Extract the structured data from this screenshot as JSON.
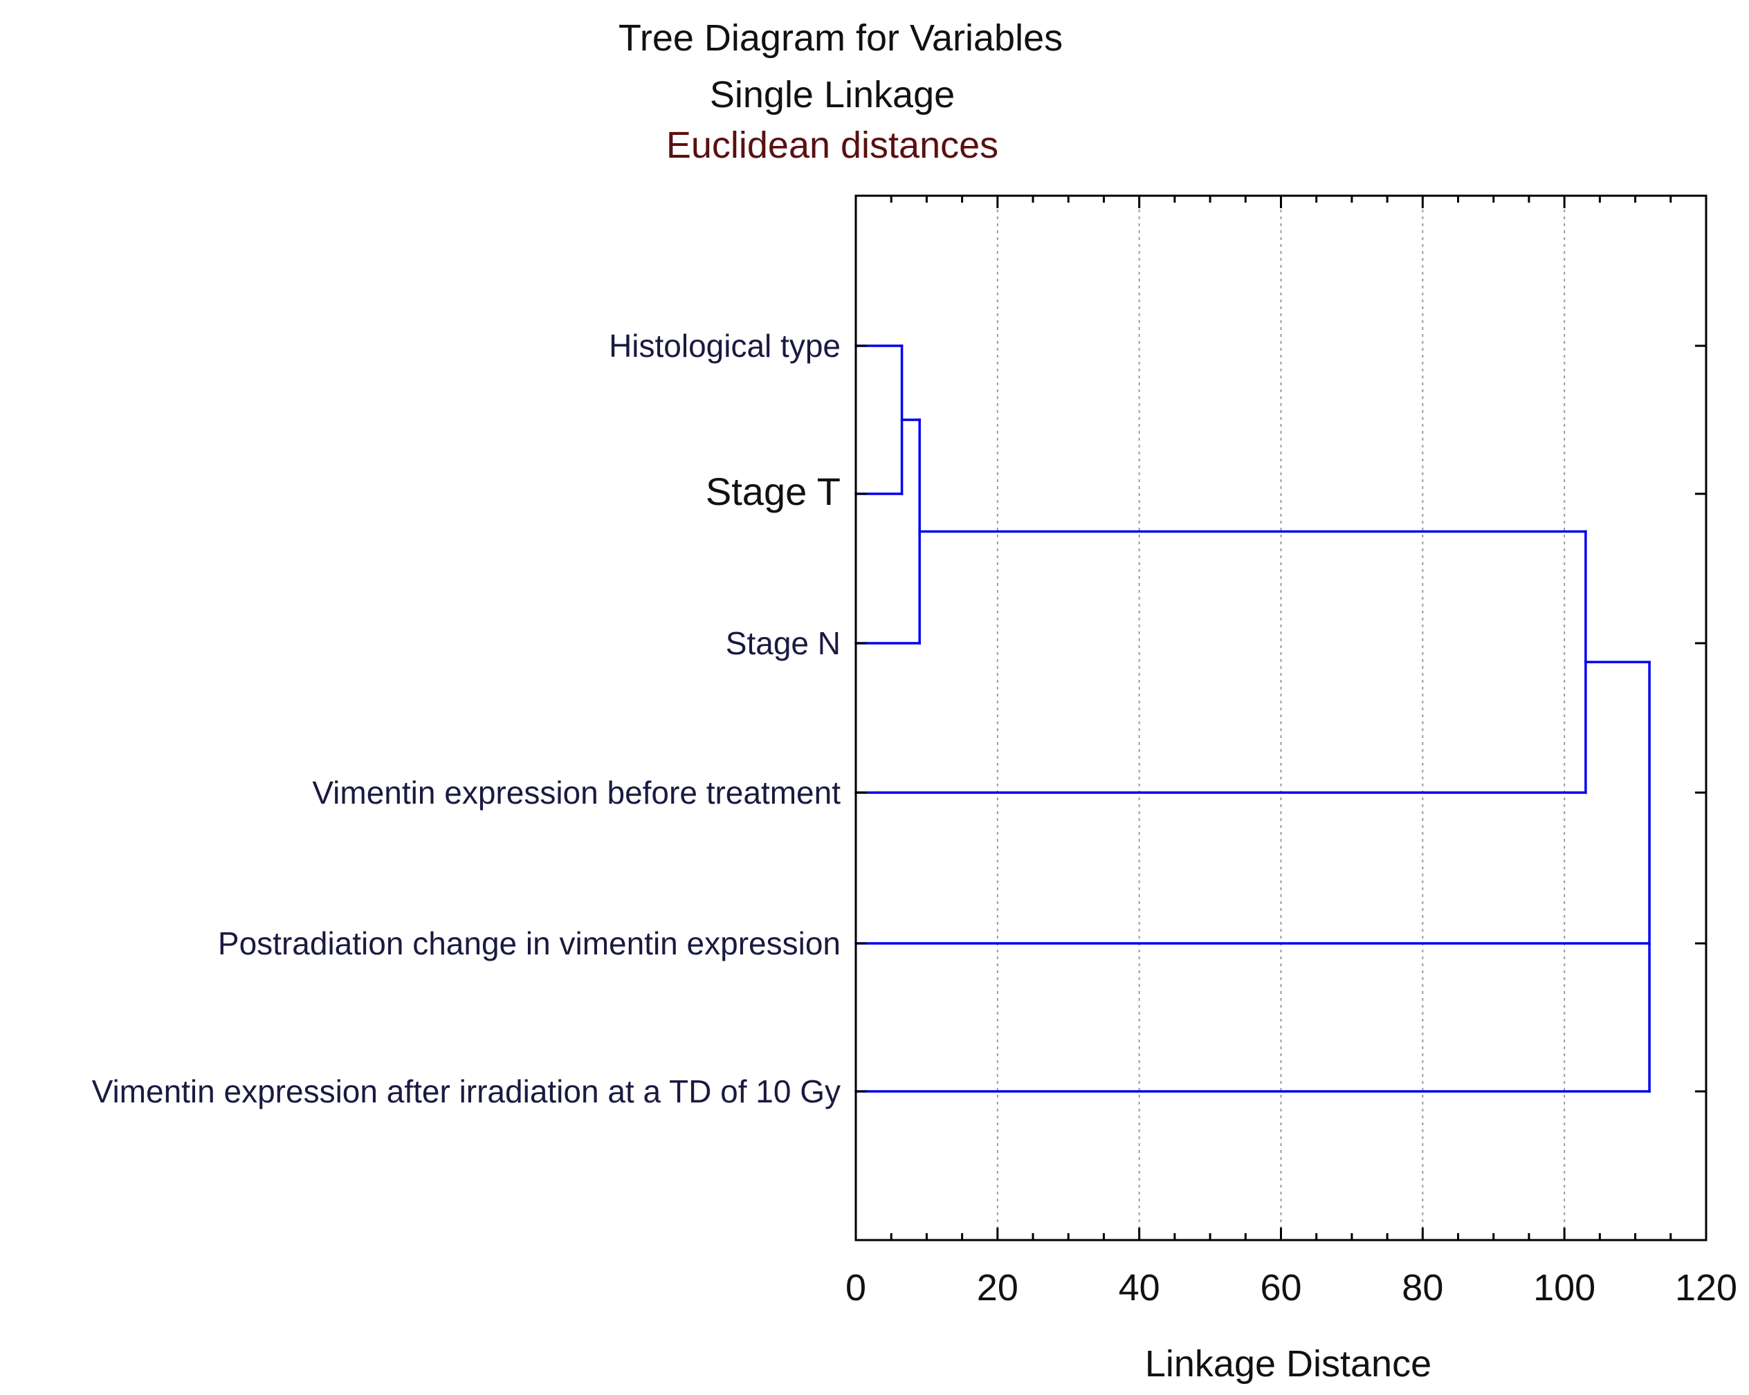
{
  "chart_data": {
    "type": "dendrogram",
    "title": "Tree Diagram for  Variables",
    "subtitle": "Single Linkage",
    "subtitle2": "Euclidean distances",
    "xlabel": "Linkage Distance",
    "xlim": [
      0,
      120
    ],
    "xticks": [
      "0",
      "20",
      "40",
      "60",
      "80",
      "100",
      "120"
    ],
    "grid": "vertical dotted",
    "leaves": [
      "Histological type",
      "Stage T",
      "Stage N",
      "Vimentin expression before treatment",
      "Postradiation change in vimentin expression",
      "Vimentin expression after irradiation at a TD of 10 Gy"
    ],
    "merges": [
      {
        "left": "Histological type",
        "right": "Stage T",
        "distance": 6.5
      },
      {
        "left": "Histological type + Stage T",
        "right": "Stage N",
        "distance": 9
      },
      {
        "left": "Histological type + Stage T + Stage N",
        "right": "Vimentin expression before treatment",
        "distance": 103
      },
      {
        "left": "cluster of 4",
        "right": "Postradiation change in vimentin expression + Vimentin expression after irradiation at a TD of 10 Gy",
        "distance": 112
      }
    ],
    "line_color": "#0000ee"
  }
}
